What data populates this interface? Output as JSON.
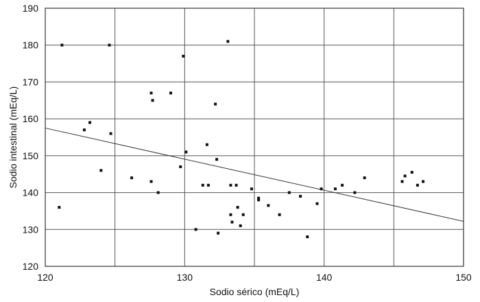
{
  "chart_data": {
    "type": "scatter",
    "xlabel": "Sodio sérico (mEq/L)",
    "ylabel": "Sodio intestinal (mEq/L)",
    "xlim": [
      120,
      150
    ],
    "ylim": [
      120,
      190
    ],
    "xticks": [
      120,
      130,
      140,
      150
    ],
    "yticks": [
      120,
      130,
      140,
      150,
      160,
      170,
      180,
      190
    ],
    "grid": true,
    "points": [
      [
        121.0,
        136
      ],
      [
        121.2,
        180
      ],
      [
        122.8,
        157
      ],
      [
        123.2,
        159
      ],
      [
        124.0,
        146
      ],
      [
        124.6,
        180
      ],
      [
        124.7,
        156
      ],
      [
        126.2,
        144
      ],
      [
        127.6,
        143
      ],
      [
        127.6,
        167
      ],
      [
        127.7,
        165
      ],
      [
        128.1,
        140
      ],
      [
        129.0,
        167
      ],
      [
        129.7,
        147
      ],
      [
        129.9,
        177
      ],
      [
        130.1,
        151
      ],
      [
        130.8,
        130
      ],
      [
        131.3,
        142
      ],
      [
        131.6,
        153
      ],
      [
        131.7,
        142
      ],
      [
        132.2,
        164
      ],
      [
        132.3,
        149
      ],
      [
        132.4,
        129
      ],
      [
        133.1,
        181
      ],
      [
        133.3,
        142
      ],
      [
        133.3,
        134
      ],
      [
        133.4,
        132
      ],
      [
        133.7,
        142
      ],
      [
        133.8,
        136
      ],
      [
        134.0,
        131
      ],
      [
        134.2,
        134
      ],
      [
        134.8,
        141
      ],
      [
        135.3,
        138
      ],
      [
        135.3,
        138.5
      ],
      [
        136.0,
        136.5
      ],
      [
        136.8,
        134
      ],
      [
        137.5,
        140
      ],
      [
        138.3,
        139
      ],
      [
        138.8,
        128
      ],
      [
        139.5,
        137
      ],
      [
        139.8,
        141
      ],
      [
        140.8,
        141
      ],
      [
        141.3,
        142
      ],
      [
        142.2,
        140
      ],
      [
        142.9,
        144
      ],
      [
        145.6,
        143
      ],
      [
        145.8,
        144.5
      ],
      [
        146.3,
        145.5
      ],
      [
        146.7,
        142
      ],
      [
        147.1,
        143
      ]
    ],
    "trendline": {
      "x": [
        120,
        150
      ],
      "y": [
        157.5,
        132.2
      ]
    }
  }
}
